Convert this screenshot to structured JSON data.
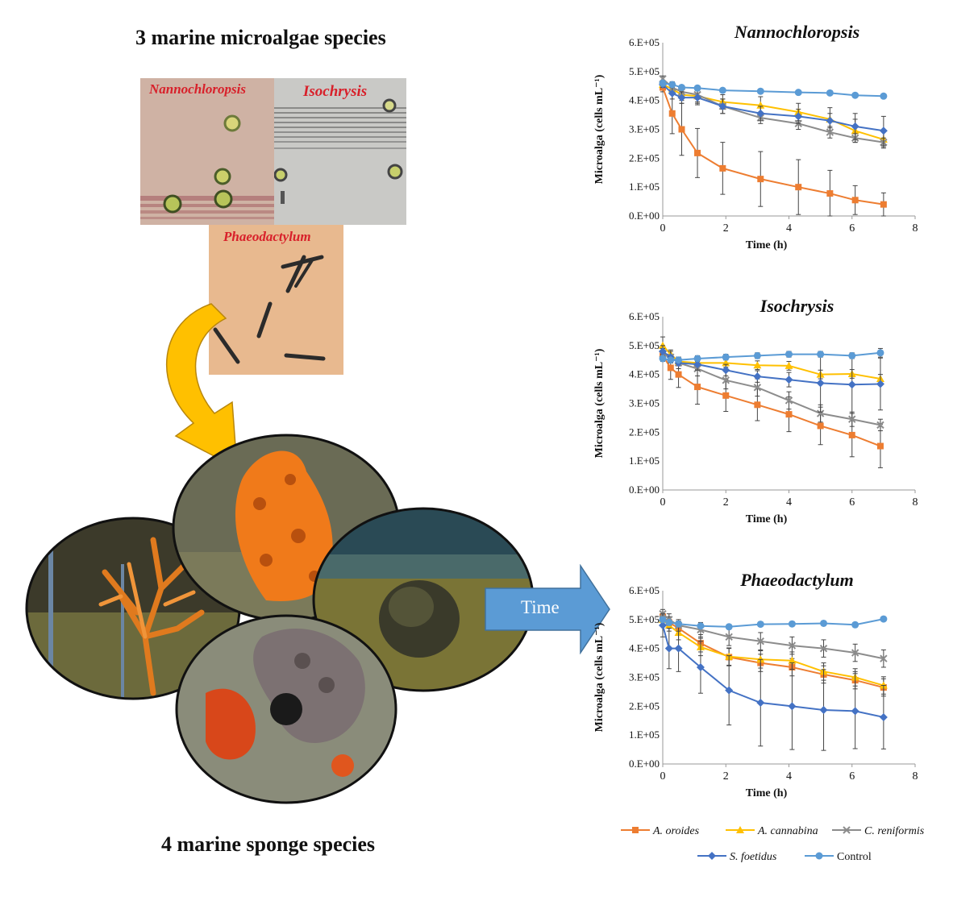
{
  "left": {
    "microalgae_heading": "3 marine microalgae species",
    "sponge_heading": "4 marine sponge species",
    "photo_labels": [
      "Nannochloropsis",
      "Isochrysis",
      "Phaeodactylum"
    ],
    "arrow_label": "Time"
  },
  "colors": {
    "A. oroides": "#ed7d31",
    "A. cannabina": "#ffc000",
    "C. reniformis": "#8c8c8c",
    "S. foetidus": "#4472c4",
    "Control": "#5b9bd5"
  },
  "legend": [
    {
      "name": "A. oroides",
      "marker": "square"
    },
    {
      "name": "A. cannabina",
      "marker": "triangle"
    },
    {
      "name": "C. reniformis",
      "marker": "x"
    },
    {
      "name": "S. foetidus",
      "marker": "diamond"
    },
    {
      "name": "Control",
      "marker": "circle"
    }
  ],
  "chart_data": [
    {
      "type": "line",
      "title": "Nannochloropsis",
      "xlabel": "Time (h)",
      "ylabel": "Microalga (cells mL⁻¹)",
      "xlim": [
        0,
        8
      ],
      "ylim": [
        0,
        600000
      ],
      "xticks": [
        "0",
        "2",
        "4",
        "6",
        "8"
      ],
      "yticks": [
        "0.E+00",
        "1.E+05",
        "2.E+05",
        "3.E+05",
        "4.E+05",
        "5.E+05",
        "6.E+05"
      ],
      "series": [
        {
          "name": "A. oroides",
          "marker": "square",
          "x": [
            0,
            0.3,
            0.6,
            1.1,
            1.9,
            3.1,
            4.3,
            5.3,
            6.1,
            7
          ],
          "y": [
            445000,
            355000,
            300000,
            218000,
            165000,
            128000,
            100000,
            78000,
            55000,
            40000
          ],
          "err": [
            15000,
            70000,
            90000,
            85000,
            90000,
            95000,
            95000,
            80000,
            50000,
            40000
          ]
        },
        {
          "name": "A. cannabina",
          "marker": "triangle",
          "x": [
            0,
            0.3,
            0.6,
            1.1,
            1.9,
            3.1,
            4.3,
            5.3,
            6.1,
            7
          ],
          "y": [
            455000,
            440000,
            420000,
            415000,
            395000,
            383000,
            360000,
            335000,
            295000,
            265000
          ],
          "err": [
            10000,
            20000,
            20000,
            25000,
            25000,
            30000,
            30000,
            40000,
            40000,
            30000
          ]
        },
        {
          "name": "C. reniformis",
          "marker": "x",
          "x": [
            0,
            0.3,
            0.6,
            1.1,
            1.9,
            3.1,
            4.3,
            5.3,
            6.1,
            7
          ],
          "y": [
            475000,
            445000,
            430000,
            420000,
            380000,
            340000,
            320000,
            290000,
            270000,
            255000
          ],
          "err": [
            10000,
            20000,
            20000,
            25000,
            25000,
            20000,
            20000,
            20000,
            15000,
            15000
          ]
        },
        {
          "name": "S. foetidus",
          "marker": "diamond",
          "x": [
            0,
            0.3,
            0.6,
            1.1,
            1.9,
            3.1,
            4.3,
            5.3,
            6.1,
            7
          ],
          "y": [
            455000,
            425000,
            410000,
            410000,
            380000,
            355000,
            345000,
            330000,
            310000,
            295000
          ],
          "err": [
            10000,
            20000,
            20000,
            25000,
            25000,
            25000,
            25000,
            25000,
            45000,
            50000
          ]
        },
        {
          "name": "Control",
          "marker": "circle",
          "x": [
            0,
            0.3,
            0.6,
            1.1,
            1.9,
            3.1,
            4.3,
            5.3,
            6.1,
            7
          ],
          "y": [
            460000,
            455000,
            445000,
            443000,
            435000,
            432000,
            428000,
            426000,
            418000,
            415000
          ],
          "err": [
            8000,
            8000,
            8000,
            8000,
            6000,
            6000,
            6000,
            6000,
            6000,
            6000
          ]
        }
      ]
    },
    {
      "type": "line",
      "title": "Isochrysis",
      "xlabel": "Time (h)",
      "ylabel": "Microalga (cells mL⁻¹)",
      "xlim": [
        0,
        8
      ],
      "ylim": [
        0,
        600000
      ],
      "xticks": [
        "0",
        "2",
        "4",
        "6",
        "8"
      ],
      "yticks": [
        "0.E+00",
        "1.E+05",
        "2.E+05",
        "3.E+05",
        "4.E+05",
        "5.E+05",
        "6.E+05"
      ],
      "series": [
        {
          "name": "A. oroides",
          "marker": "square",
          "x": [
            0,
            0.25,
            0.5,
            1.1,
            2,
            3,
            4,
            5,
            6,
            6.9
          ],
          "y": [
            465000,
            423000,
            400000,
            357000,
            327000,
            295000,
            262000,
            222000,
            190000,
            152000
          ],
          "err": [
            15000,
            40000,
            45000,
            60000,
            55000,
            55000,
            60000,
            65000,
            75000,
            75000
          ]
        },
        {
          "name": "A. cannabina",
          "marker": "triangle",
          "x": [
            0,
            0.25,
            0.5,
            1.1,
            2,
            3,
            4,
            5,
            6,
            6.9
          ],
          "y": [
            500000,
            470000,
            445000,
            440000,
            440000,
            432000,
            430000,
            400000,
            402000,
            385000
          ],
          "err": [
            30000,
            15000,
            15000,
            15000,
            15000,
            15000,
            15000,
            15000,
            15000,
            15000
          ]
        },
        {
          "name": "C. reniformis",
          "marker": "x",
          "x": [
            0,
            0.25,
            0.5,
            1.1,
            2,
            3,
            4,
            5,
            6,
            6.9
          ],
          "y": [
            470000,
            460000,
            440000,
            420000,
            380000,
            355000,
            310000,
            265000,
            245000,
            225000
          ],
          "err": [
            20000,
            20000,
            20000,
            25000,
            30000,
            30000,
            30000,
            30000,
            25000,
            20000
          ]
        },
        {
          "name": "S. foetidus",
          "marker": "diamond",
          "x": [
            0,
            0.25,
            0.5,
            1.1,
            2,
            3,
            4,
            5,
            6,
            6.9
          ],
          "y": [
            480000,
            460000,
            440000,
            435000,
            415000,
            393000,
            382000,
            370000,
            365000,
            367000
          ],
          "err": [
            20000,
            20000,
            20000,
            20000,
            20000,
            20000,
            25000,
            100000,
            100000,
            90000
          ]
        },
        {
          "name": "Control",
          "marker": "circle",
          "x": [
            0,
            0.25,
            0.5,
            1.1,
            2,
            3,
            4,
            5,
            6,
            6.9
          ],
          "y": [
            455000,
            450000,
            450000,
            455000,
            460000,
            465000,
            470000,
            470000,
            465000,
            475000
          ],
          "err": [
            10000,
            10000,
            10000,
            10000,
            10000,
            10000,
            10000,
            10000,
            10000,
            15000
          ]
        }
      ]
    },
    {
      "type": "line",
      "title": "Phaeodactylum",
      "xlabel": "Time (h)",
      "ylabel": "Microalga (cells mL⁻¹)",
      "xlim": [
        0,
        8
      ],
      "ylim": [
        0,
        600000
      ],
      "xticks": [
        "0",
        "2",
        "4",
        "6",
        "8"
      ],
      "yticks": [
        "0.E+00",
        "1.E+05",
        "2.E+05",
        "3.E+05",
        "4.E+05",
        "5.E+05",
        "6.E+05"
      ],
      "series": [
        {
          "name": "A. oroides",
          "marker": "square",
          "x": [
            0,
            0.2,
            0.5,
            1.2,
            2.1,
            3.1,
            4.1,
            5.1,
            6.1,
            7
          ],
          "y": [
            510000,
            490000,
            470000,
            418000,
            370000,
            350000,
            335000,
            310000,
            290000,
            265000
          ],
          "err": [
            15000,
            20000,
            25000,
            30000,
            30000,
            30000,
            30000,
            30000,
            30000,
            30000
          ]
        },
        {
          "name": "A. cannabina",
          "marker": "triangle",
          "x": [
            0,
            0.2,
            0.5,
            1.2,
            2.1,
            3.1,
            4.1,
            5.1,
            6.1,
            7
          ],
          "y": [
            500000,
            480000,
            455000,
            405000,
            372000,
            362000,
            358000,
            320000,
            300000,
            272000
          ],
          "err": [
            15000,
            20000,
            25000,
            30000,
            30000,
            30000,
            30000,
            30000,
            30000,
            30000
          ]
        },
        {
          "name": "C. reniformis",
          "marker": "x",
          "x": [
            0,
            0.2,
            0.5,
            1.2,
            2.1,
            3.1,
            4.1,
            5.1,
            6.1,
            7
          ],
          "y": [
            520000,
            500000,
            480000,
            465000,
            440000,
            425000,
            410000,
            400000,
            385000,
            365000
          ],
          "err": [
            15000,
            20000,
            20000,
            25000,
            30000,
            30000,
            30000,
            30000,
            30000,
            30000
          ]
        },
        {
          "name": "S. foetidus",
          "marker": "diamond",
          "x": [
            0,
            0.2,
            0.5,
            1.2,
            2.1,
            3.1,
            4.1,
            5.1,
            6.1,
            7
          ],
          "y": [
            480000,
            400000,
            400000,
            335000,
            255000,
            212000,
            200000,
            187000,
            183000,
            162000
          ],
          "err": [
            40000,
            70000,
            80000,
            90000,
            120000,
            150000,
            150000,
            140000,
            130000,
            110000
          ]
        },
        {
          "name": "Control",
          "marker": "circle",
          "x": [
            0,
            0.2,
            0.5,
            1.2,
            2.1,
            3.1,
            4.1,
            5.1,
            6.1,
            7
          ],
          "y": [
            500000,
            490000,
            485000,
            478000,
            475000,
            484000,
            485000,
            487000,
            482000,
            502000
          ],
          "err": [
            8000,
            8000,
            8000,
            8000,
            8000,
            8000,
            8000,
            8000,
            8000,
            8000
          ]
        }
      ]
    }
  ]
}
